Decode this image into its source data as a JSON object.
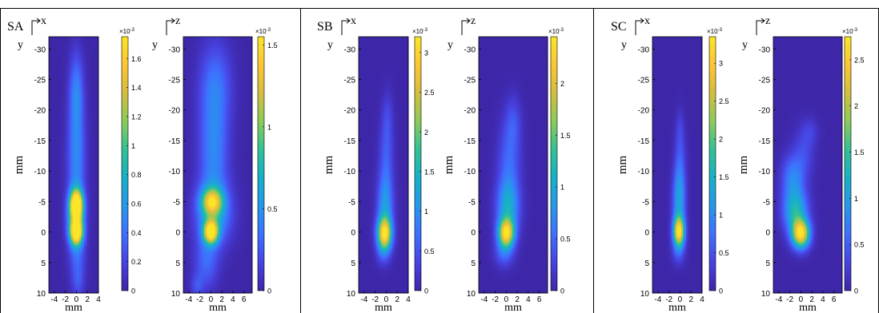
{
  "colormap": [
    "#3e26a8",
    "#4743e2",
    "#3e70fe",
    "#2797eb",
    "#17b0c8",
    "#33c195",
    "#8ccb5a",
    "#d3be3f",
    "#fdc534",
    "#f9e629"
  ],
  "chart_data": [
    {
      "type": "heatmap",
      "panel": "SA",
      "show_panel_label": true,
      "view": "x",
      "xlabel": "mm",
      "ylabel": "mm",
      "y_axis_letter": "y",
      "xticks": [
        -4,
        -2,
        0,
        2,
        4
      ],
      "xlim": [
        -5,
        4
      ],
      "yticks": [
        -30,
        -25,
        -20,
        -15,
        -10,
        -5,
        0,
        5,
        10
      ],
      "ylim": [
        -32,
        10
      ],
      "colorbar_exponent": "×10^-3",
      "colorbar_ticks": [
        0,
        0.2,
        0.4,
        0.6,
        0.8,
        1,
        1.2,
        1.4,
        1.6
      ],
      "colorbar_max": 1.75,
      "blobs": [
        {
          "x": 0.0,
          "y": -4.5,
          "sx": 0.8,
          "sy": 1.6,
          "v": 1.7
        },
        {
          "x": 0.0,
          "y": 0.0,
          "sx": 0.8,
          "sy": 1.4,
          "v": 1.6
        },
        {
          "x": -0.1,
          "y": -2.2,
          "sx": 1.0,
          "sy": 3.0,
          "v": 0.9
        },
        {
          "x": 0.0,
          "y": -12.0,
          "sx": 1.1,
          "sy": 6.0,
          "v": 0.5
        },
        {
          "x": 0.0,
          "y": -23.0,
          "sx": 0.9,
          "sy": 4.5,
          "v": 0.45
        },
        {
          "x": 0.2,
          "y": 5.0,
          "sx": 1.0,
          "sy": 3.0,
          "v": 0.3
        },
        {
          "x": 0.3,
          "y": 8.5,
          "sx": 0.7,
          "sy": 1.5,
          "v": 0.15
        }
      ]
    },
    {
      "type": "heatmap",
      "panel": "SA",
      "show_panel_label": false,
      "view": "z",
      "xlabel": "mm",
      "ylabel": "",
      "y_axis_letter": "y",
      "xticks": [
        -4,
        -2,
        0,
        2,
        4,
        6
      ],
      "xlim": [
        -5,
        7.5
      ],
      "yticks": [
        -30,
        -25,
        -20,
        -15,
        -10,
        -5,
        0,
        5,
        10
      ],
      "ylim": [
        -32,
        10
      ],
      "colorbar_exponent": "×10^-3",
      "colorbar_ticks": [
        0,
        0.5,
        1,
        1.5
      ],
      "colorbar_max": 1.55,
      "blobs": [
        {
          "x": 0.0,
          "y": 0.0,
          "sx": 0.9,
          "sy": 1.3,
          "v": 1.5
        },
        {
          "x": 0.2,
          "y": -5.0,
          "sx": 1.3,
          "sy": 1.5,
          "v": 1.0
        },
        {
          "x": 0.5,
          "y": -3.0,
          "sx": 2.2,
          "sy": 3.5,
          "v": 0.55
        },
        {
          "x": 0.5,
          "y": -13.0,
          "sx": 1.8,
          "sy": 6.0,
          "v": 0.42
        },
        {
          "x": 0.8,
          "y": -24.0,
          "sx": 2.0,
          "sy": 5.0,
          "v": 0.35
        },
        {
          "x": -0.8,
          "y": 5.0,
          "sx": 1.5,
          "sy": 3.0,
          "v": 0.3
        },
        {
          "x": -2.5,
          "y": 9.0,
          "sx": 0.8,
          "sy": 1.5,
          "v": 0.2
        }
      ]
    },
    {
      "type": "heatmap",
      "panel": "SB",
      "show_panel_label": true,
      "view": "x",
      "xlabel": "mm",
      "ylabel": "mm",
      "y_axis_letter": "y",
      "xticks": [
        -4,
        -2,
        0,
        2,
        4
      ],
      "xlim": [
        -5,
        4
      ],
      "yticks": [
        -30,
        -25,
        -20,
        -15,
        -10,
        -5,
        0,
        5,
        10
      ],
      "ylim": [
        -32,
        10
      ],
      "colorbar_exponent": "×10^-3",
      "colorbar_ticks": [
        0,
        0.5,
        1,
        1.5,
        2,
        2.5,
        3
      ],
      "colorbar_max": 3.2,
      "blobs": [
        {
          "x": -0.3,
          "y": 0.3,
          "sx": 0.9,
          "sy": 1.8,
          "v": 2.9
        },
        {
          "x": -0.2,
          "y": -4.0,
          "sx": 1.0,
          "sy": 3.5,
          "v": 1.0
        },
        {
          "x": 0.0,
          "y": -12.0,
          "sx": 0.9,
          "sy": 5.0,
          "v": 0.55
        },
        {
          "x": 0.3,
          "y": -19.0,
          "sx": 0.7,
          "sy": 3.0,
          "v": 0.25
        },
        {
          "x": -0.5,
          "y": 3.5,
          "sx": 0.9,
          "sy": 1.5,
          "v": 0.4
        }
      ]
    },
    {
      "type": "heatmap",
      "panel": "SB",
      "show_panel_label": false,
      "view": "z",
      "xlabel": "mm",
      "ylabel": "mm",
      "y_axis_letter": "y",
      "xticks": [
        -4,
        -2,
        0,
        2,
        4,
        6
      ],
      "xlim": [
        -5,
        7.5
      ],
      "yticks": [
        -30,
        -25,
        -20,
        -15,
        -10,
        -5,
        0,
        5,
        10
      ],
      "ylim": [
        -32,
        10
      ],
      "colorbar_exponent": "×10^-3",
      "colorbar_ticks": [
        0,
        0.5,
        1,
        1.5,
        2
      ],
      "colorbar_max": 2.45,
      "blobs": [
        {
          "x": 0.0,
          "y": 0.2,
          "sx": 1.0,
          "sy": 1.6,
          "v": 2.2
        },
        {
          "x": 0.3,
          "y": -4.0,
          "sx": 1.4,
          "sy": 3.0,
          "v": 0.9
        },
        {
          "x": 0.5,
          "y": -11.0,
          "sx": 1.4,
          "sy": 5.0,
          "v": 0.5
        },
        {
          "x": 1.3,
          "y": -18.0,
          "sx": 1.0,
          "sy": 3.0,
          "v": 0.3
        },
        {
          "x": -0.4,
          "y": 3.5,
          "sx": 1.2,
          "sy": 1.6,
          "v": 0.45
        }
      ]
    },
    {
      "type": "heatmap",
      "panel": "SC",
      "show_panel_label": true,
      "view": "x",
      "xlabel": "mm",
      "ylabel": "mm",
      "y_axis_letter": "y",
      "xticks": [
        -4,
        -2,
        0,
        2,
        4
      ],
      "xlim": [
        -5,
        4
      ],
      "yticks": [
        -30,
        -25,
        -20,
        -15,
        -10,
        -5,
        0,
        5,
        10
      ],
      "ylim": [
        -32,
        10
      ],
      "colorbar_exponent": "×10^-3",
      "colorbar_ticks": [
        0,
        0.5,
        1,
        1.5,
        2,
        2.5,
        3
      ],
      "colorbar_max": 3.35,
      "blobs": [
        {
          "x": -0.2,
          "y": 0.0,
          "sx": 0.7,
          "sy": 1.7,
          "v": 3.1
        },
        {
          "x": -0.2,
          "y": -5.0,
          "sx": 0.8,
          "sy": 3.5,
          "v": 1.1
        },
        {
          "x": 0.0,
          "y": -11.0,
          "sx": 0.7,
          "sy": 4.5,
          "v": 0.55
        },
        {
          "x": 0.0,
          "y": -17.0,
          "sx": 0.5,
          "sy": 2.0,
          "v": 0.2
        },
        {
          "x": -0.3,
          "y": 3.5,
          "sx": 0.8,
          "sy": 1.4,
          "v": 0.4
        }
      ]
    },
    {
      "type": "heatmap",
      "panel": "SC",
      "show_panel_label": false,
      "view": "z",
      "xlabel": "mm",
      "ylabel": "mm",
      "y_axis_letter": "y",
      "xticks": [
        -4,
        -2,
        0,
        2,
        4,
        6
      ],
      "xlim": [
        -5,
        7.5
      ],
      "yticks": [
        -30,
        -25,
        -20,
        -15,
        -10,
        -5,
        0,
        5,
        10
      ],
      "ylim": [
        -32,
        10
      ],
      "colorbar_exponent": "×10^-3",
      "colorbar_ticks": [
        0,
        0.5,
        1,
        1.5,
        2,
        2.5
      ],
      "colorbar_max": 2.75,
      "blobs": [
        {
          "x": 0.0,
          "y": 0.3,
          "sx": 1.1,
          "sy": 1.6,
          "v": 2.6
        },
        {
          "x": -1.0,
          "y": -3.5,
          "sx": 1.5,
          "sy": 2.5,
          "v": 1.3
        },
        {
          "x": -1.5,
          "y": -9.0,
          "sx": 1.4,
          "sy": 2.5,
          "v": 0.7
        },
        {
          "x": 0.5,
          "y": -13.0,
          "sx": 1.3,
          "sy": 3.0,
          "v": 0.35
        },
        {
          "x": 1.8,
          "y": -16.5,
          "sx": 1.0,
          "sy": 1.5,
          "v": 0.22
        }
      ]
    }
  ]
}
